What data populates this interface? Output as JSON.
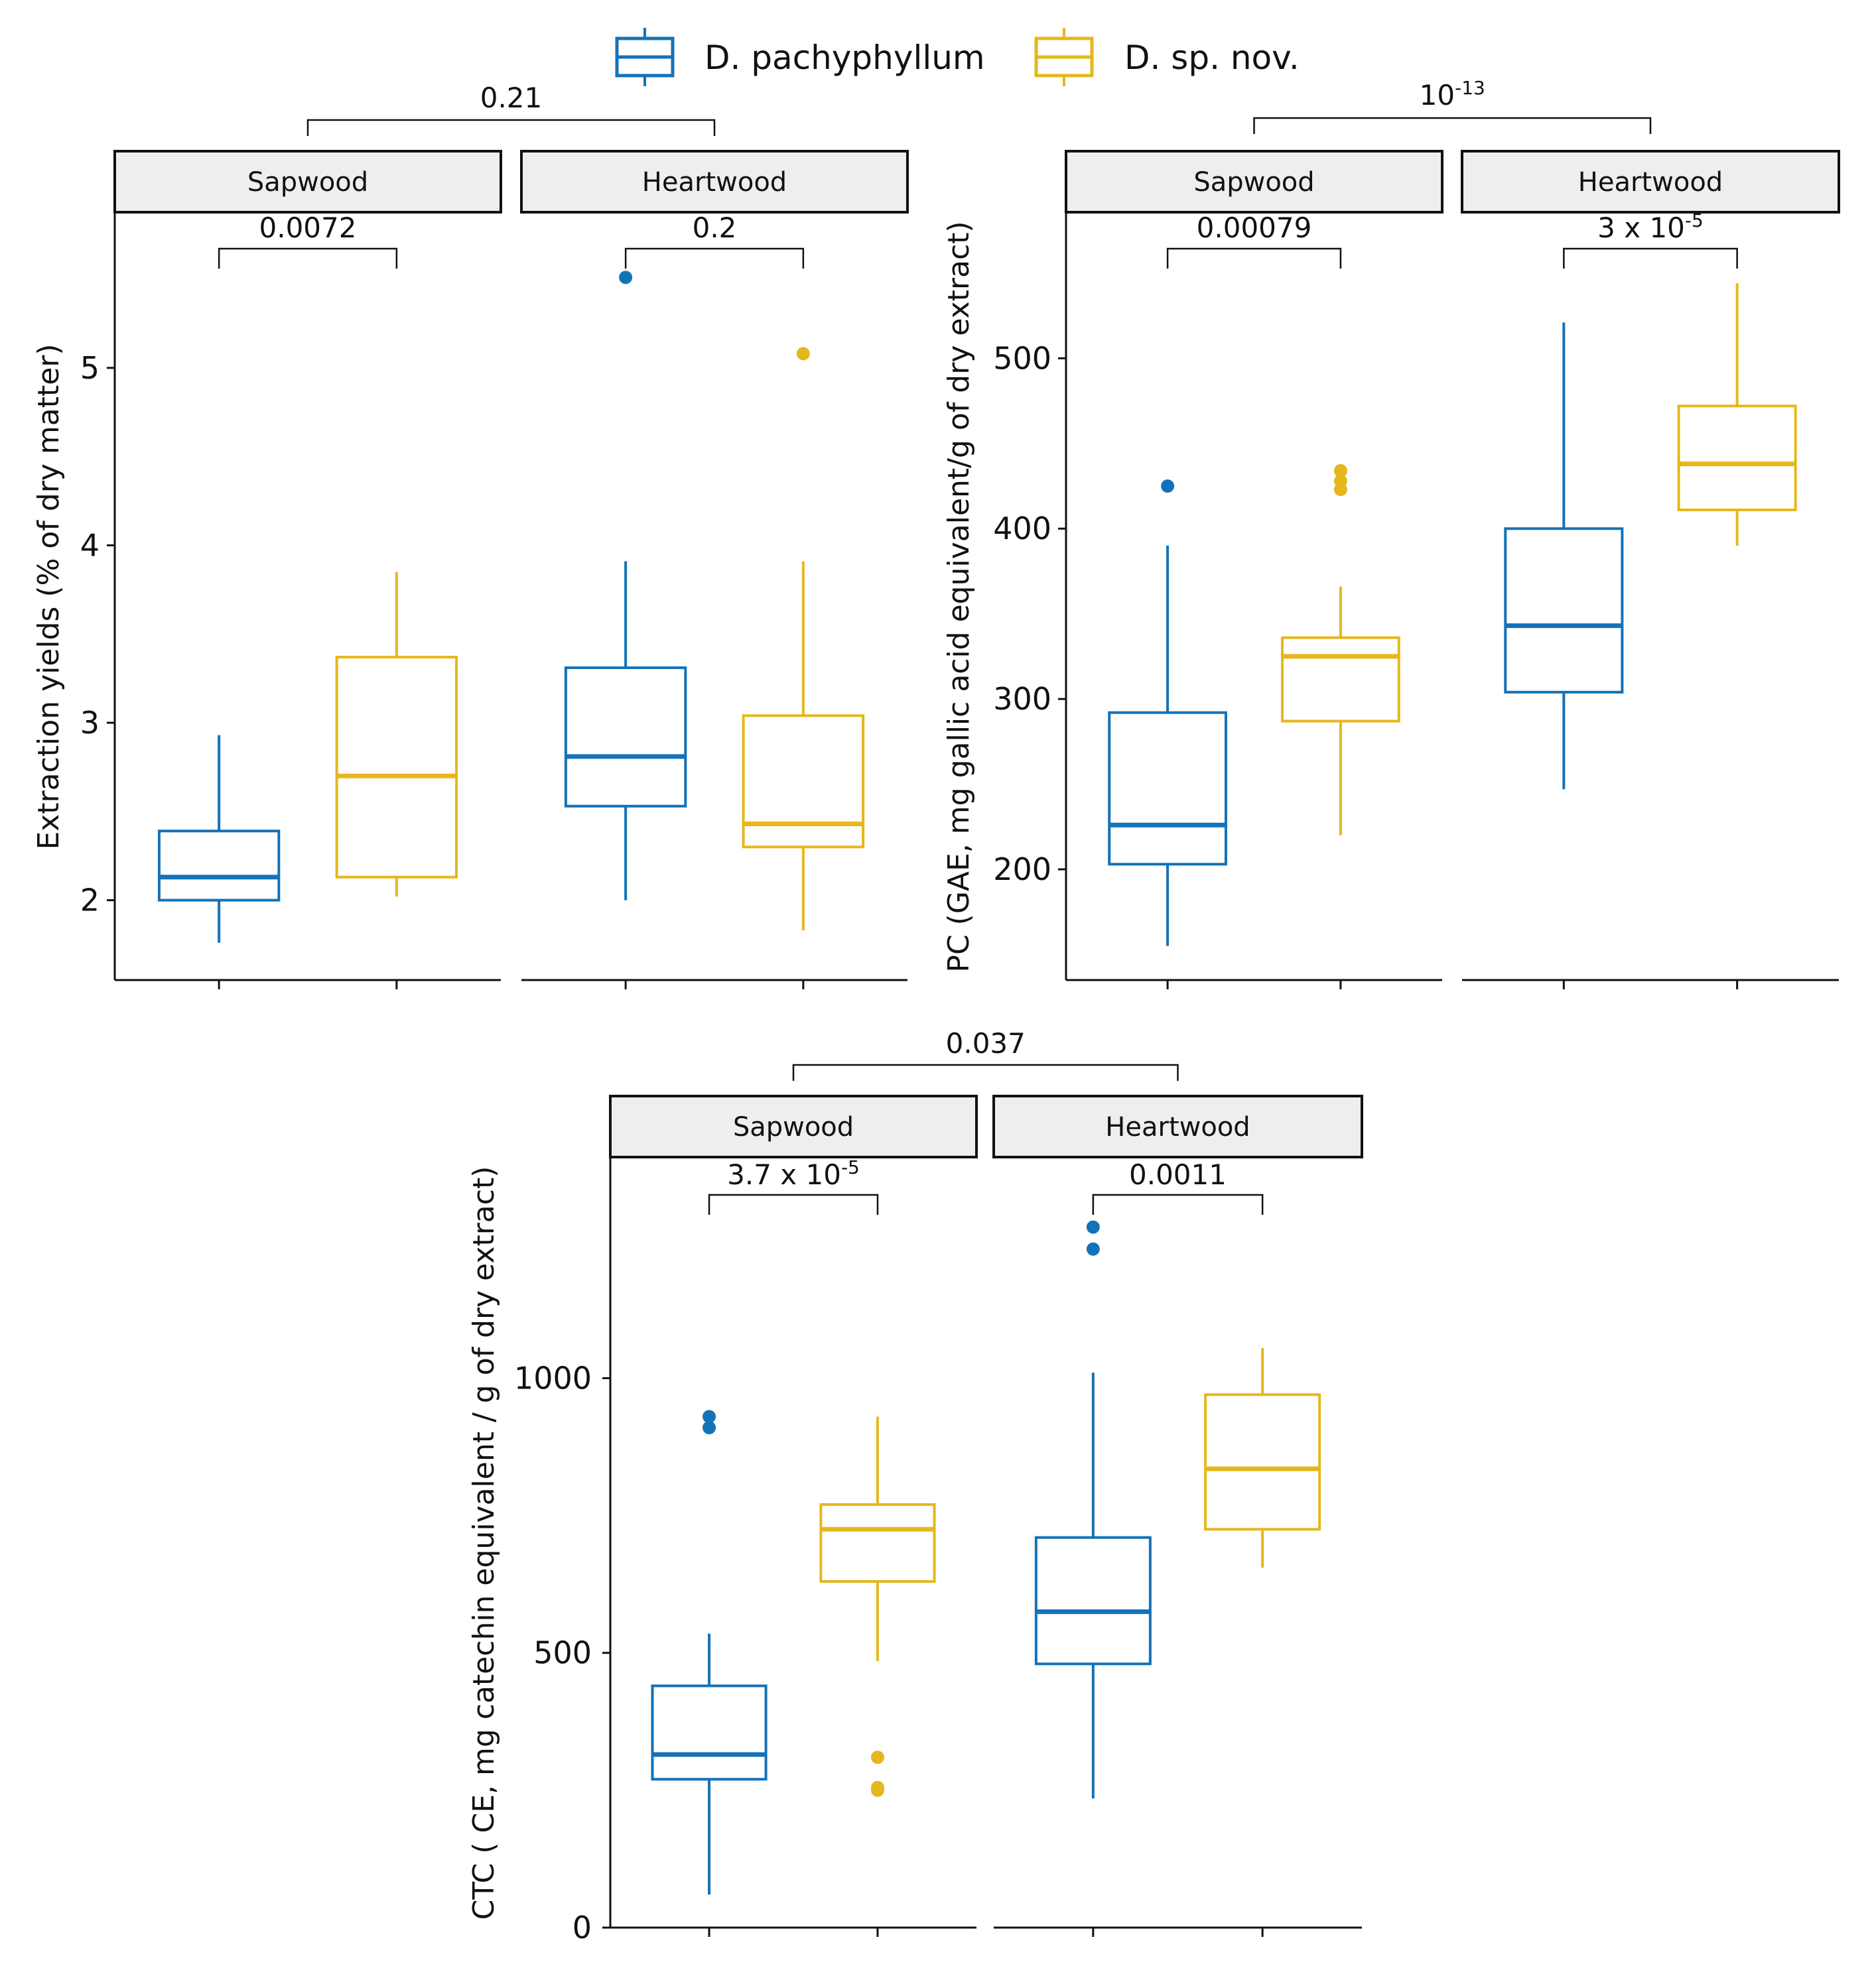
{
  "legend": {
    "items": [
      {
        "label": "D. pachyphyllum",
        "color": "#1472b8"
      },
      {
        "label": "D. sp. nov.",
        "color": "#e6b71c"
      }
    ]
  },
  "chart_data": [
    {
      "type": "boxplot",
      "id": "extraction",
      "ylabel": "Extraction yields (% of dry matter)",
      "ylim": [
        1.55,
        5.87
      ],
      "yticks": [
        2,
        3,
        4,
        5
      ],
      "ytick_labels": [
        "2",
        "3",
        "4",
        "5"
      ],
      "facet_pvalue": {
        "base": "0.21",
        "sup": ""
      },
      "facets": [
        {
          "label": "Sapwood",
          "pvalue": {
            "base": "0.0072",
            "sup": ""
          },
          "boxes": [
            {
              "series": "D. pachyphyllum",
              "whisker_low": 1.76,
              "q1": 2.0,
              "median": 2.13,
              "q3": 2.39,
              "whisker_high": 2.93,
              "outliers": []
            },
            {
              "series": "D. sp. nov.",
              "whisker_low": 2.02,
              "q1": 2.13,
              "median": 2.7,
              "q3": 3.37,
              "whisker_high": 3.85,
              "outliers": []
            }
          ]
        },
        {
          "label": "Heartwood",
          "pvalue": {
            "base": "0.2",
            "sup": ""
          },
          "boxes": [
            {
              "series": "D. pachyphyllum",
              "whisker_low": 2.0,
              "q1": 2.53,
              "median": 2.81,
              "q3": 3.31,
              "whisker_high": 3.91,
              "outliers": [
                5.51
              ]
            },
            {
              "series": "D. sp. nov.",
              "whisker_low": 1.83,
              "q1": 2.3,
              "median": 2.43,
              "q3": 3.04,
              "whisker_high": 3.91,
              "outliers": [
                5.08
              ]
            }
          ]
        }
      ]
    },
    {
      "type": "boxplot",
      "id": "phenolic",
      "ylabel": "PC (GAE, mg gallic acid equivalent/g of dry extract)",
      "ylim": [
        135,
        585
      ],
      "yticks": [
        200,
        300,
        400,
        500
      ],
      "ytick_labels": [
        "200",
        "300",
        "400",
        "500"
      ],
      "facet_pvalue": {
        "base": "10",
        "sup": "-13"
      },
      "facets": [
        {
          "label": "Sapwood",
          "pvalue": {
            "base": "0.00079",
            "sup": ""
          },
          "boxes": [
            {
              "series": "D. pachyphyllum",
              "whisker_low": 155,
              "q1": 203,
              "median": 226,
              "q3": 292,
              "whisker_high": 390,
              "outliers": [
                425
              ]
            },
            {
              "series": "D. sp. nov.",
              "whisker_low": 220,
              "q1": 287,
              "median": 325,
              "q3": 336,
              "whisker_high": 366,
              "outliers": [
                423,
                428,
                434
              ]
            }
          ]
        },
        {
          "label": "Heartwood",
          "pvalue": {
            "base": "3 x 10",
            "sup": "-5"
          },
          "boxes": [
            {
              "series": "D. pachyphyllum",
              "whisker_low": 247,
              "q1": 304,
              "median": 343,
              "q3": 400,
              "whisker_high": 521,
              "outliers": []
            },
            {
              "series": "D. sp. nov.",
              "whisker_low": 390,
              "q1": 411,
              "median": 438,
              "q3": 472,
              "whisker_high": 544,
              "outliers": []
            }
          ]
        }
      ]
    },
    {
      "type": "boxplot",
      "id": "tannins",
      "ylabel": "CTC ( CE, mg catechin equivalent / g of dry extract)",
      "ylim": [
        0,
        1400
      ],
      "yticks": [
        0,
        500,
        1000
      ],
      "ytick_labels": [
        "0",
        "500",
        "1000"
      ],
      "facet_pvalue": {
        "base": "0.037",
        "sup": ""
      },
      "facets": [
        {
          "label": "Sapwood",
          "pvalue": {
            "base": "3.7 x 10",
            "sup": "-5"
          },
          "boxes": [
            {
              "series": "D. pachyphyllum",
              "whisker_low": 60,
              "q1": 270,
              "median": 315,
              "q3": 440,
              "whisker_high": 535,
              "outliers": [
                910,
                930
              ]
            },
            {
              "series": "D. sp. nov.",
              "whisker_low": 485,
              "q1": 630,
              "median": 725,
              "q3": 770,
              "whisker_high": 930,
              "outliers": [
                250,
                255,
                310
              ]
            }
          ]
        },
        {
          "label": "Heartwood",
          "pvalue": {
            "base": "0.0011",
            "sup": ""
          },
          "boxes": [
            {
              "series": "D. pachyphyllum",
              "whisker_low": 235,
              "q1": 480,
              "median": 575,
              "q3": 710,
              "whisker_high": 1010,
              "outliers": [
                1235,
                1275
              ]
            },
            {
              "series": "D. sp. nov.",
              "whisker_low": 655,
              "q1": 725,
              "median": 835,
              "q3": 970,
              "whisker_high": 1055,
              "outliers": []
            }
          ]
        }
      ]
    }
  ]
}
